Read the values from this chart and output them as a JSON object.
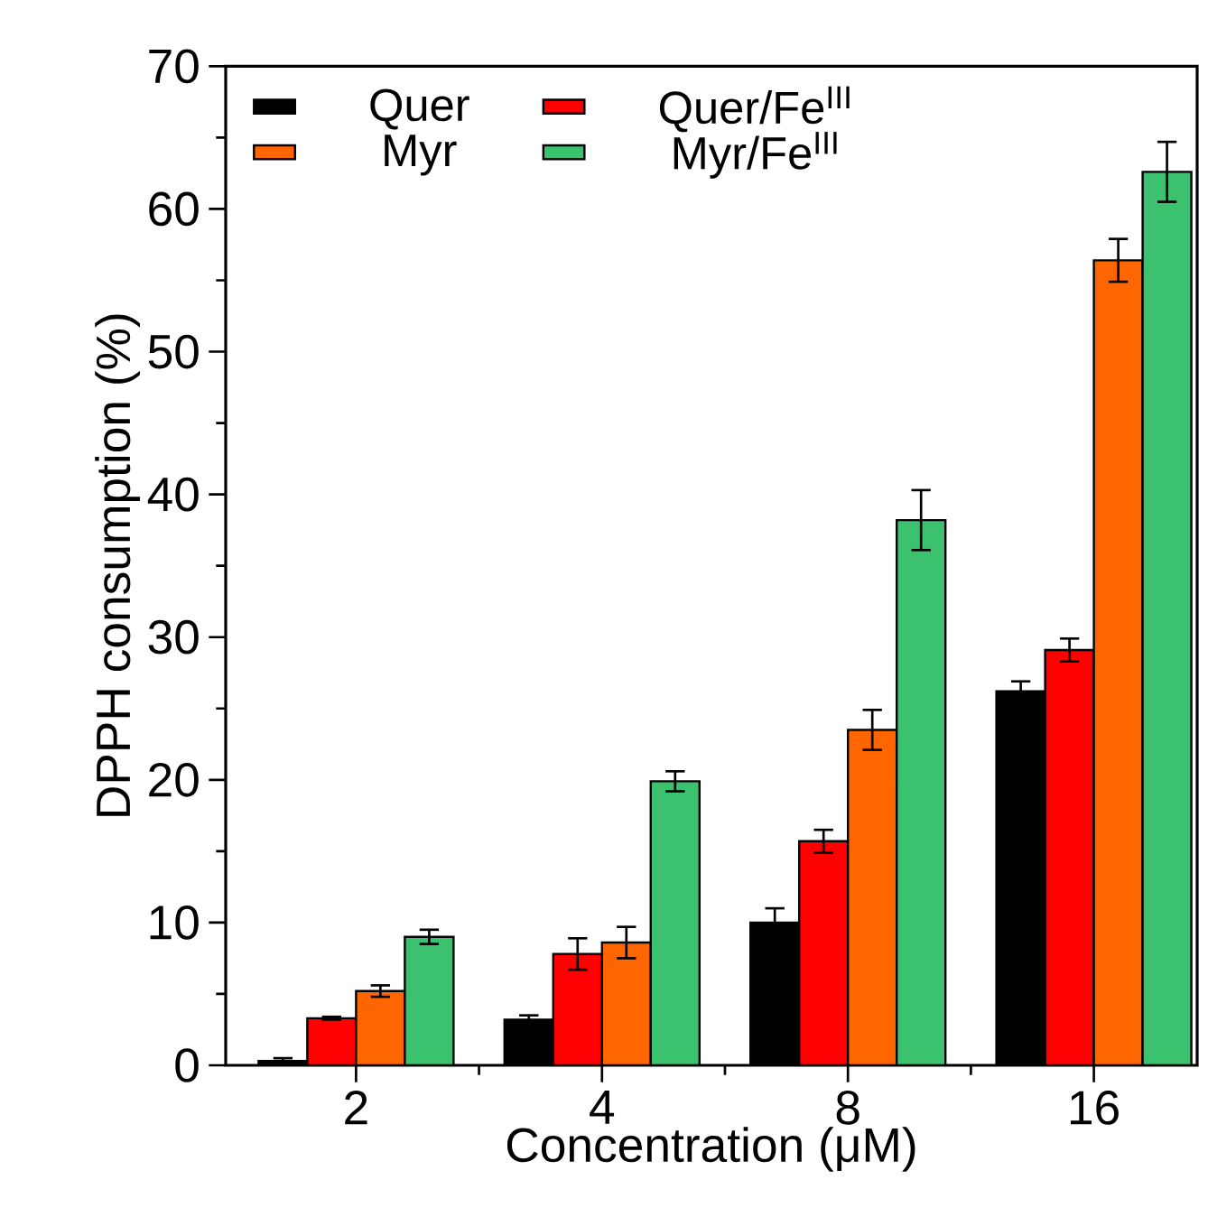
{
  "chart_data": {
    "type": "bar",
    "xlabel": "Concentration (μM)",
    "ylabel": "DPPH consumption (%)",
    "categories": [
      "2",
      "4",
      "8",
      "16"
    ],
    "series": [
      {
        "name": "Quer",
        "color": "#000000",
        "values": [
          0.3,
          3.2,
          10.0,
          26.2
        ],
        "errors": [
          0.2,
          0.3,
          1.0,
          0.7
        ]
      },
      {
        "name": "Quer/Fe$^{III}$",
        "color": "#ff0000",
        "values": [
          3.3,
          7.8,
          15.7,
          29.1
        ],
        "errors": [
          0.1,
          1.1,
          0.8,
          0.8
        ]
      },
      {
        "name": "Myr",
        "color": "#ff6600",
        "values": [
          5.2,
          8.6,
          23.5,
          56.4
        ],
        "errors": [
          0.4,
          1.1,
          1.4,
          1.5
        ]
      },
      {
        "name": "Myr/Fe$^{III}$",
        "color": "#3cc26f",
        "values": [
          9.0,
          19.9,
          38.2,
          62.6
        ],
        "errors": [
          0.5,
          0.7,
          2.1,
          2.1
        ]
      }
    ],
    "ylim": [
      0,
      70
    ],
    "yticks": [
      0,
      10,
      20,
      30,
      40,
      50,
      60,
      70
    ],
    "legend": "top left",
    "grid": false
  }
}
